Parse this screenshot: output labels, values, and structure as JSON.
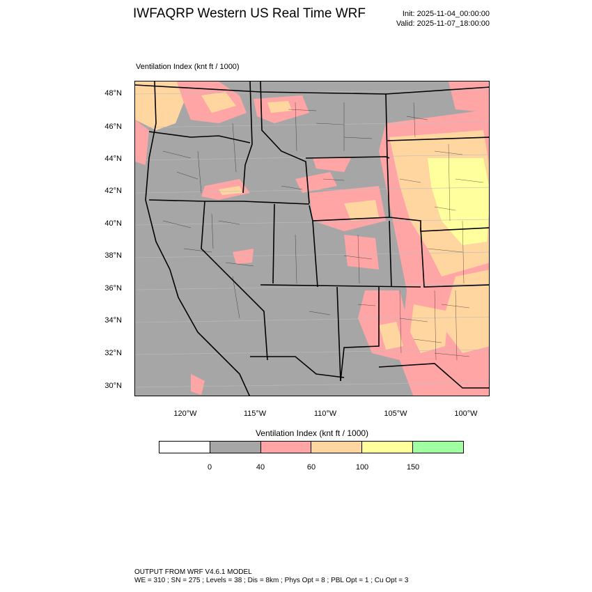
{
  "header": {
    "title": "IWFAQRP Western US Real Time WRF",
    "init": "Init: 2025-11-04_00:00:00",
    "valid": "Valid: 2025-11-07_18:00:00"
  },
  "map": {
    "field_label": "Ventilation Index   (knt ft / 1000)",
    "lat_labels": [
      "48°N",
      "46°N",
      "44°N",
      "42°N",
      "40°N",
      "38°N",
      "36°N",
      "34°N",
      "32°N",
      "30°N"
    ],
    "lon_labels": [
      "120°W",
      "115°W",
      "110°W",
      "105°W",
      "100°W"
    ],
    "background_color": "#a6a6a6"
  },
  "colorbar": {
    "title": "Ventilation Index   (knt ft / 1000)",
    "colors": [
      "#ffffff",
      "#a6a6a6",
      "#ffa5a5",
      "#ffd6a0",
      "#ffff9e",
      "#a0ffa0"
    ],
    "ticks": [
      "0",
      "40",
      "60",
      "100",
      "150"
    ]
  },
  "footer": {
    "line1": "OUTPUT FROM WRF V4.6.1 MODEL",
    "line2": "WE = 310 ; SN = 275 ; Levels = 38 ; Dis = 8km ; Phys Opt = 8 ; PBL Opt = 1 ; Cu Opt = 3"
  }
}
